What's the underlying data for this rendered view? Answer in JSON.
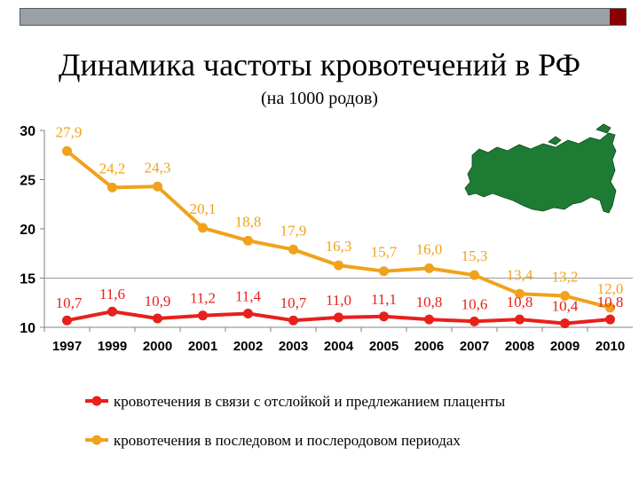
{
  "slide": {
    "title": "Динамика частоты кровотечений в РФ",
    "subtitle": "(на 1000 родов)"
  },
  "colors": {
    "series1": "#e8201b",
    "series2": "#f0a21c",
    "map": "#1e7b34",
    "top_bar": "#9aa0a6",
    "top_bar_accent": "#8a0000"
  },
  "icon": "russia-map-icon",
  "chart_data": {
    "type": "line",
    "x": [
      "1997",
      "1999",
      "2000",
      "2001",
      "2002",
      "2003",
      "2004",
      "2005",
      "2006",
      "2007",
      "2008",
      "2009",
      "2010"
    ],
    "ylim": [
      10,
      30
    ],
    "yticks": [
      "10",
      "15",
      "20",
      "25",
      "30"
    ],
    "grid": false,
    "legend_position": "bottom",
    "series": [
      {
        "name": "кровотечения в связи с отслойкой и предлежанием плаценты",
        "values": [
          10.7,
          11.6,
          10.9,
          11.2,
          11.4,
          10.7,
          11.0,
          11.1,
          10.8,
          10.6,
          10.8,
          10.4,
          10.8
        ],
        "labels": [
          "10,7",
          "11,6",
          "10,9",
          "11,2",
          "11,4",
          "10,7",
          "11,0",
          "11,1",
          "10,8",
          "10,6",
          "10,8",
          "10,4",
          "10,8"
        ]
      },
      {
        "name": "кровотечения в последовом и послеродовом периодах",
        "values": [
          27.9,
          24.2,
          24.3,
          20.1,
          18.8,
          17.9,
          16.3,
          15.7,
          16.0,
          15.3,
          13.4,
          13.2,
          12.0
        ],
        "labels": [
          "27,9",
          "24,2",
          "24,3",
          "20,1",
          "18,8",
          "17,9",
          "16,3",
          "15,7",
          "16,0",
          "15,3",
          "13,4",
          "13,2",
          "12,0"
        ]
      }
    ]
  }
}
